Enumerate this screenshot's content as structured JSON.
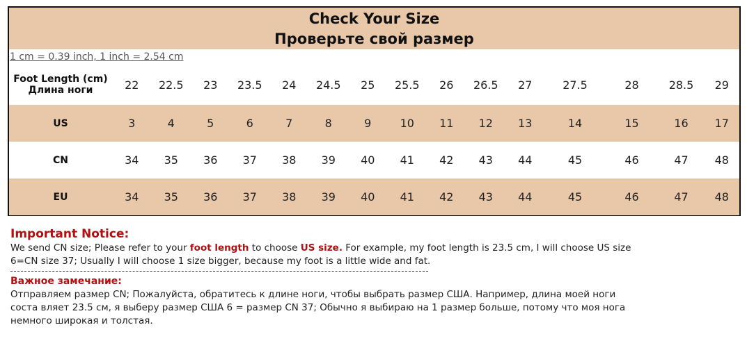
{
  "title_en": "Check Your Size",
  "title_ru": "Проверьте свой размер",
  "conversion": "1 cm = 0.39 inch, 1 inch = 2.54 cm",
  "rows": [
    {
      "label_en": "Foot Length (cm)",
      "label_ru": "Длина ноги",
      "values": [
        "22",
        "22.5",
        "23",
        "23.5",
        "24",
        "24.5",
        "25",
        "25.5",
        "26",
        "26.5",
        "27",
        "27.5",
        "28",
        "28.5",
        "29"
      ]
    },
    {
      "label": "US",
      "values": [
        "3",
        "4",
        "5",
        "6",
        "7",
        "8",
        "9",
        "10",
        "11",
        "12",
        "13",
        "14",
        "15",
        "16",
        "17"
      ]
    },
    {
      "label": "CN",
      "values": [
        "34",
        "35",
        "36",
        "37",
        "38",
        "39",
        "40",
        "41",
        "42",
        "43",
        "44",
        "45",
        "46",
        "47",
        "48"
      ]
    },
    {
      "label": "EU",
      "values": [
        "34",
        "35",
        "36",
        "37",
        "38",
        "39",
        "40",
        "41",
        "42",
        "43",
        "44",
        "45",
        "46",
        "47",
        "48"
      ]
    }
  ],
  "notice": {
    "heading": "Important Notice:",
    "p1": "We send CN size; Please refer to your ",
    "p1_em1": "foot length",
    "p1_mid": " to choose ",
    "p1_em2": "US size.",
    "p1_rest": " For example, my foot length is 23.5 cm, I will choose US size 6=CN size 37; Usually I will choose 1 size bigger, because my foot is a little wide and fat.",
    "heading_ru": "Важное замечание:",
    "text_ru": "Отправляем размер CN; Пожалуйста, обратитесь к длине ноги, чтобы выбрать размер США. Например, длина моей ноги соста вляет 23.5 см, я выберу размер США 6 = размер CN 37; Обычно я выбираю на 1 размер больше, потому что моя нога немного широкая и толстая."
  },
  "colors": {
    "band": "#e8c8a9",
    "accent": "#b01010"
  }
}
